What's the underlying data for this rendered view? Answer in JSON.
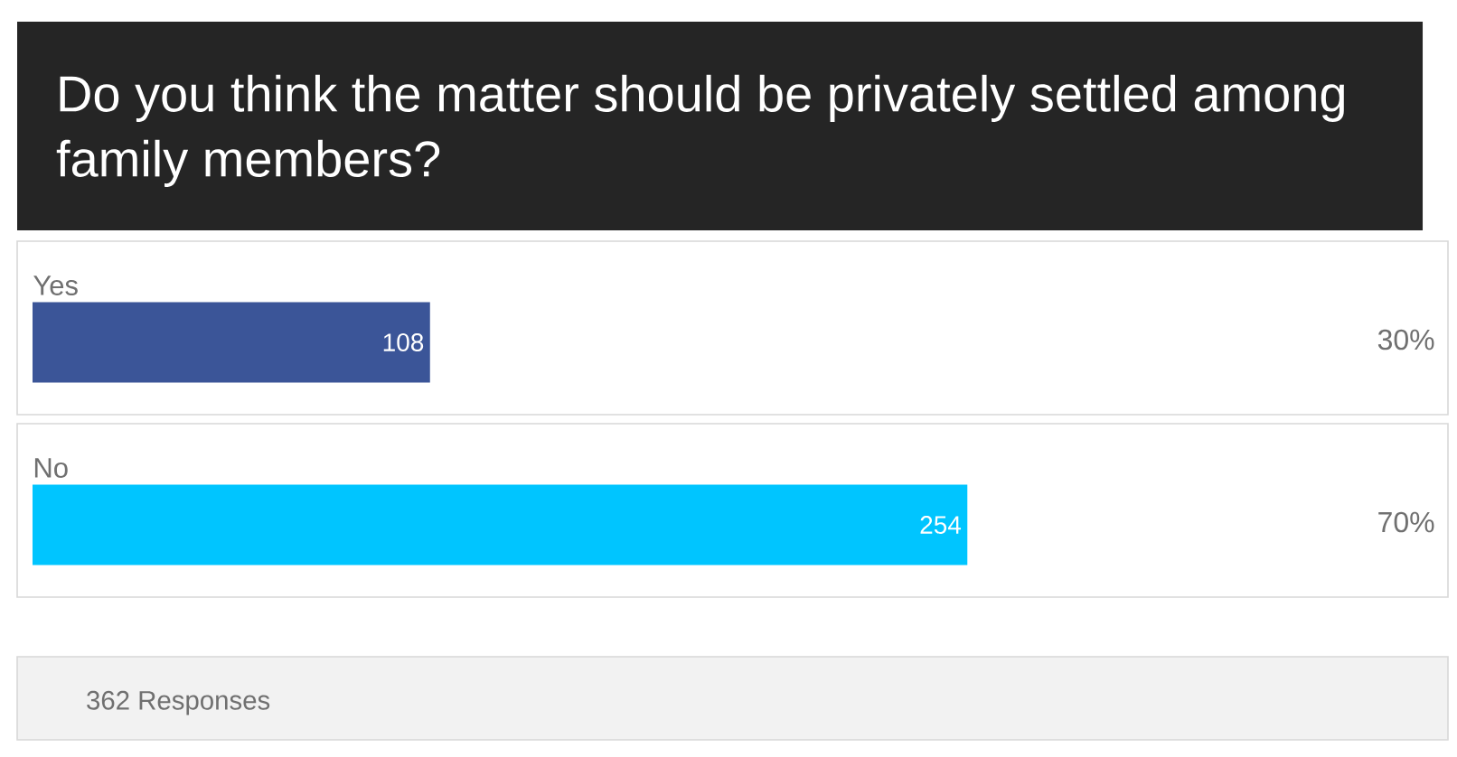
{
  "chart_data": {
    "type": "bar",
    "orientation": "horizontal",
    "title": "Do you think the matter should be privately settled among family members?",
    "categories": [
      "Yes",
      "No"
    ],
    "values": [
      108,
      254
    ],
    "colors": [
      "#3b5598",
      "#00c5ff"
    ],
    "value_labels": [
      "108",
      "254"
    ],
    "tick_labels": "y",
    "annotations": [
      "30%",
      "70%",
      "362 Responses"
    ]
  }
}
